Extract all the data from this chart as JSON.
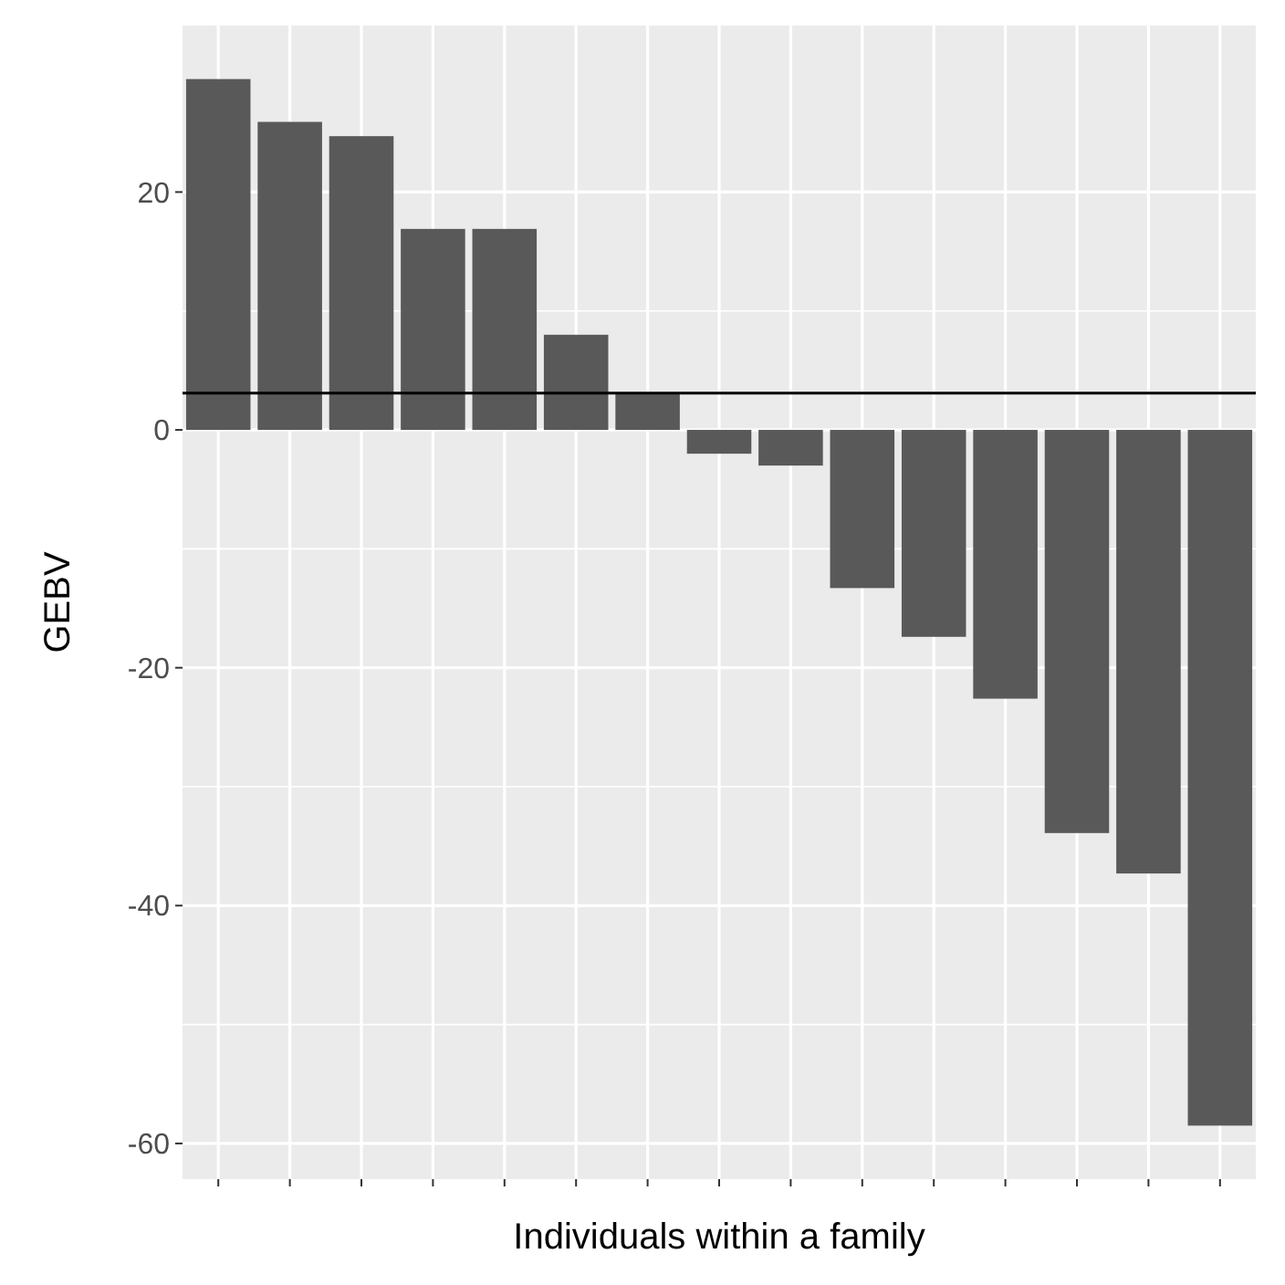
{
  "chart_data": {
    "type": "bar",
    "xlabel": "Individuals within a family",
    "ylabel": "GEBV",
    "categories": [
      null,
      null,
      null,
      null,
      null,
      null,
      null,
      null,
      null,
      null,
      null,
      null,
      null,
      null,
      null
    ],
    "values": [
      29.5,
      25.9,
      24.7,
      16.9,
      16.9,
      8.0,
      3.1,
      -2.0,
      -3.0,
      -13.3,
      -17.4,
      -22.6,
      -33.9,
      -37.3,
      -58.5
    ],
    "color": "#595959",
    "ylim": [
      -63,
      34
    ],
    "yticks": [
      -60,
      -40,
      -20,
      0,
      20
    ],
    "grid": true,
    "ref_lines": [
      {
        "axis": "y",
        "value": 3.1,
        "color": "#000000"
      }
    ]
  }
}
